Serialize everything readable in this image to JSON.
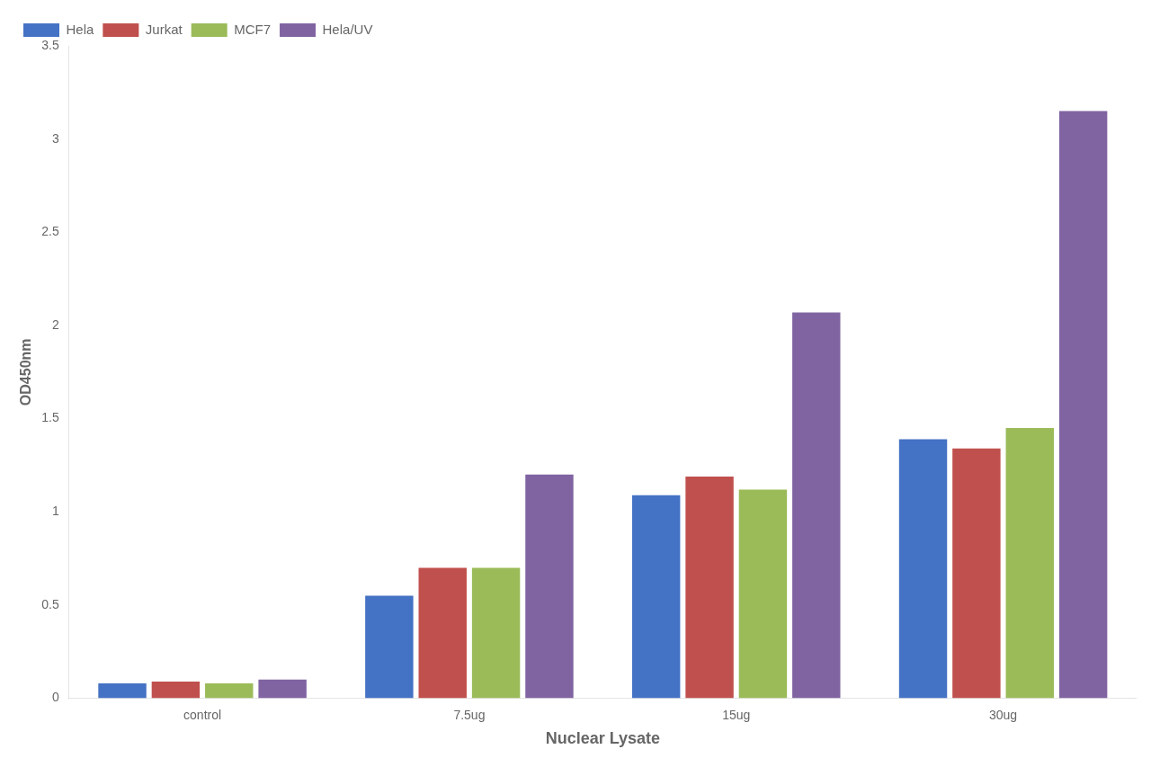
{
  "chart_data": {
    "type": "bar",
    "categories": [
      "control",
      "7.5ug",
      "15ug",
      "30ug"
    ],
    "series": [
      {
        "name": "Hela",
        "color": "#4472C4",
        "values": [
          0.08,
          0.55,
          1.09,
          1.39
        ]
      },
      {
        "name": "Jurkat",
        "color": "#C0504D",
        "values": [
          0.09,
          0.7,
          1.19,
          1.34
        ]
      },
      {
        "name": "MCF7",
        "color": "#9BBB59",
        "values": [
          0.08,
          0.7,
          1.12,
          1.45
        ]
      },
      {
        "name": "Hela/UV",
        "color": "#8064A2",
        "values": [
          0.1,
          1.2,
          2.07,
          3.15
        ]
      }
    ],
    "xlabel": "Nuclear Lysate",
    "ylabel": "OD450nm",
    "ylim": [
      0,
      3.5
    ],
    "yticks": [
      0,
      0.5,
      1,
      1.5,
      2,
      2.5,
      3,
      3.5
    ],
    "grid": false,
    "legend": "upper left"
  }
}
